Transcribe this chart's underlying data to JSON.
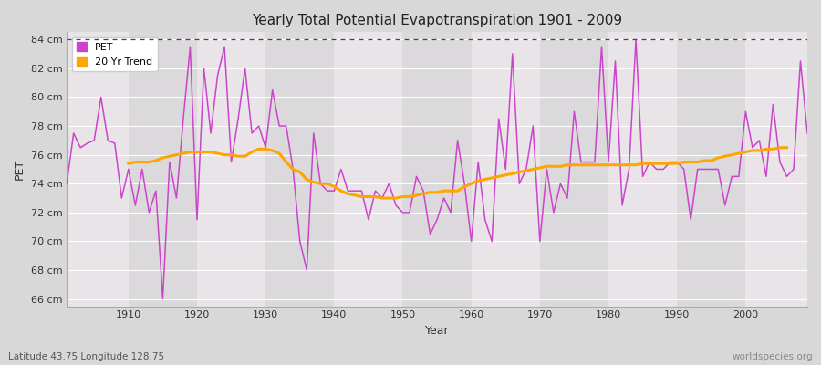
{
  "title": "Yearly Total Potential Evapotranspiration 1901 - 2009",
  "xlabel": "Year",
  "ylabel": "PET",
  "bottom_left_label": "Latitude 43.75 Longitude 128.75",
  "bottom_right_label": "worldspecies.org",
  "ylim": [
    65.5,
    84.5
  ],
  "yticks": [
    66,
    68,
    70,
    72,
    74,
    76,
    78,
    80,
    82,
    84
  ],
  "ytick_labels": [
    "66 cm",
    "68 cm",
    "70 cm",
    "72 cm",
    "74 cm",
    "76 cm",
    "78 cm",
    "80 cm",
    "82 cm",
    "84 cm"
  ],
  "xticks": [
    1910,
    1920,
    1930,
    1940,
    1950,
    1960,
    1970,
    1980,
    1990,
    2000
  ],
  "pet_color": "#CC44CC",
  "trend_color": "#FFA500",
  "fig_bg_color": "#D8D8D8",
  "plot_bg_color": "#E8E4E8",
  "col_band_color": "#DCDADC",
  "grid_color": "#CCCCCC",
  "dashed_line_y": 84,
  "years": [
    1901,
    1902,
    1903,
    1904,
    1905,
    1906,
    1907,
    1908,
    1909,
    1910,
    1911,
    1912,
    1913,
    1914,
    1915,
    1916,
    1917,
    1918,
    1919,
    1920,
    1921,
    1922,
    1923,
    1924,
    1925,
    1926,
    1927,
    1928,
    1929,
    1930,
    1931,
    1932,
    1933,
    1934,
    1935,
    1936,
    1937,
    1938,
    1939,
    1940,
    1941,
    1942,
    1943,
    1944,
    1945,
    1946,
    1947,
    1948,
    1949,
    1950,
    1951,
    1952,
    1953,
    1954,
    1955,
    1956,
    1957,
    1958,
    1959,
    1960,
    1961,
    1962,
    1963,
    1964,
    1965,
    1966,
    1967,
    1968,
    1969,
    1970,
    1971,
    1972,
    1973,
    1974,
    1975,
    1976,
    1977,
    1978,
    1979,
    1980,
    1981,
    1982,
    1983,
    1984,
    1985,
    1986,
    1987,
    1988,
    1989,
    1990,
    1991,
    1992,
    1993,
    1994,
    1995,
    1996,
    1997,
    1998,
    1999,
    2000,
    2001,
    2002,
    2003,
    2004,
    2005,
    2006,
    2007,
    2008,
    2009
  ],
  "pet_values": [
    74.0,
    77.5,
    76.5,
    76.8,
    77.0,
    80.0,
    77.0,
    76.8,
    73.0,
    75.0,
    72.5,
    75.0,
    72.0,
    73.5,
    66.0,
    75.5,
    73.0,
    78.5,
    83.5,
    71.5,
    82.0,
    77.5,
    81.5,
    83.5,
    75.5,
    78.5,
    82.0,
    77.5,
    78.0,
    76.5,
    80.5,
    78.0,
    78.0,
    75.0,
    70.0,
    68.0,
    77.5,
    74.0,
    73.5,
    73.5,
    75.0,
    73.5,
    73.5,
    73.5,
    71.5,
    73.5,
    73.0,
    74.0,
    72.5,
    72.0,
    72.0,
    74.5,
    73.5,
    70.5,
    71.5,
    73.0,
    72.0,
    77.0,
    74.0,
    70.0,
    75.5,
    71.5,
    70.0,
    78.5,
    75.0,
    83.0,
    74.0,
    75.0,
    78.0,
    70.0,
    75.0,
    72.0,
    74.0,
    73.0,
    79.0,
    75.5,
    75.5,
    75.5,
    83.5,
    75.5,
    82.5,
    72.5,
    75.0,
    84.0,
    74.5,
    75.5,
    75.0,
    75.0,
    75.5,
    75.5,
    75.0,
    71.5,
    75.0,
    75.0,
    75.0,
    75.0,
    72.5,
    74.5,
    74.5,
    79.0,
    76.5,
    77.0,
    74.5,
    79.5,
    75.5,
    74.5,
    75.0,
    82.5,
    77.5
  ],
  "trend_start_year": 1910,
  "trend_values": [
    75.4,
    75.5,
    75.5,
    75.5,
    75.6,
    75.8,
    75.9,
    76.0,
    76.1,
    76.2,
    76.2,
    76.2,
    76.2,
    76.1,
    76.0,
    76.0,
    75.9,
    75.9,
    76.2,
    76.4,
    76.4,
    76.3,
    76.1,
    75.5,
    75.0,
    74.8,
    74.3,
    74.1,
    74.0,
    74.0,
    73.8,
    73.5,
    73.3,
    73.2,
    73.1,
    73.1,
    73.1,
    73.0,
    73.0,
    73.0,
    73.1,
    73.1,
    73.2,
    73.3,
    73.4,
    73.4,
    73.5,
    73.5,
    73.5,
    73.8,
    74.0,
    74.2,
    74.3,
    74.4,
    74.5,
    74.6,
    74.7,
    74.8,
    74.9,
    75.0,
    75.1,
    75.2,
    75.2,
    75.2,
    75.3,
    75.3,
    75.3,
    75.3,
    75.3,
    75.3,
    75.3,
    75.3,
    75.3,
    75.3,
    75.3,
    75.4,
    75.4,
    75.4,
    75.4,
    75.4,
    75.4,
    75.5,
    75.5,
    75.5,
    75.6,
    75.6,
    75.8,
    75.9,
    76.0,
    76.1,
    76.2,
    76.3,
    76.3,
    76.4,
    76.4,
    76.5,
    76.5
  ]
}
